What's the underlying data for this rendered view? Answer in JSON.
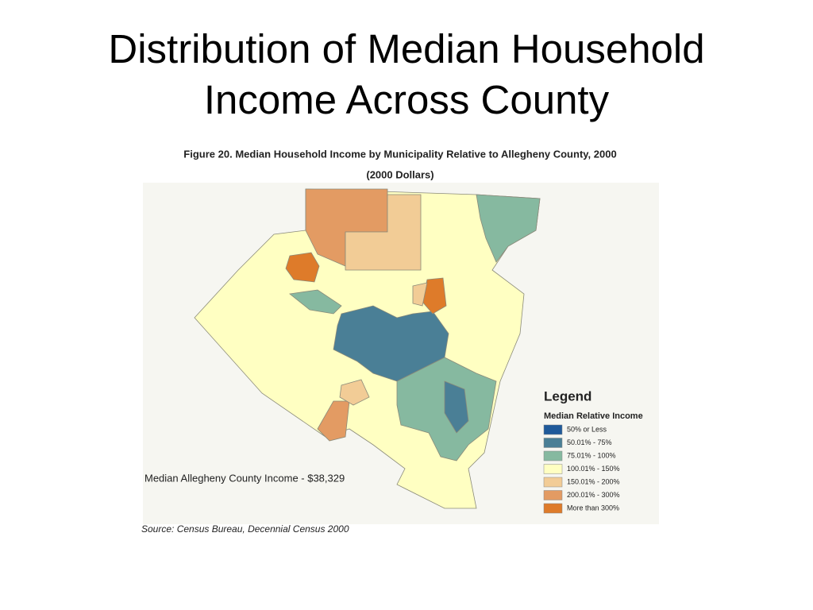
{
  "title": "Distribution of Median Household Income Across County",
  "figure": {
    "title": "Figure 20. Median Household Income by Municipality Relative to Allegheny County, 2000",
    "subtitle": "(2000 Dollars)",
    "note": "Median Allegheny County Income - $38,329",
    "source": "Source: Census Bureau, Decennial Census 2000",
    "legend": {
      "title": "Legend",
      "subtitle": "Median Relative Income",
      "items": [
        {
          "label": "50% or Less",
          "color": "#1f5a9a"
        },
        {
          "label": "50.01% - 75%",
          "color": "#4a7f96"
        },
        {
          "label": "75.01% - 100%",
          "color": "#86b9a0"
        },
        {
          "label": "100.01% - 150%",
          "color": "#ffffc2"
        },
        {
          "label": "150.01% - 200%",
          "color": "#f2cc96"
        },
        {
          "label": "200.01% - 300%",
          "color": "#e39b63"
        },
        {
          "label": "More than 300%",
          "color": "#de7b2a"
        }
      ]
    }
  }
}
